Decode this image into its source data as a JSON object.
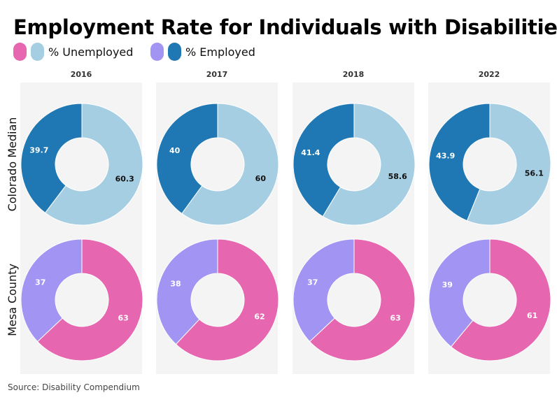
{
  "chart_data": {
    "type": "pie",
    "title": "Employment Rate for Individuals with Disabilities",
    "legend": [
      {
        "label": "% Unemployed",
        "colors": [
          "#e667b0",
          "#a6cee3"
        ]
      },
      {
        "label": "% Employed",
        "colors": [
          "#a294f2",
          "#1f78b4"
        ]
      }
    ],
    "columns": [
      "2016",
      "2017",
      "2018",
      "2022"
    ],
    "rows": [
      {
        "name": "Colorado Median",
        "unemployed": [
          60.3,
          60,
          58.6,
          56.1
        ],
        "employed": [
          39.7,
          40,
          41.4,
          43.9
        ],
        "colors": {
          "unemployed": "#a6cee3",
          "employed": "#1f78b4"
        }
      },
      {
        "name": "Mesa County",
        "unemployed": [
          63,
          62,
          63,
          61
        ],
        "employed": [
          37,
          38,
          37,
          39
        ],
        "colors": {
          "unemployed": "#e667b0",
          "employed": "#a294f2"
        }
      }
    ],
    "source": "Source: Disability Compendium"
  }
}
